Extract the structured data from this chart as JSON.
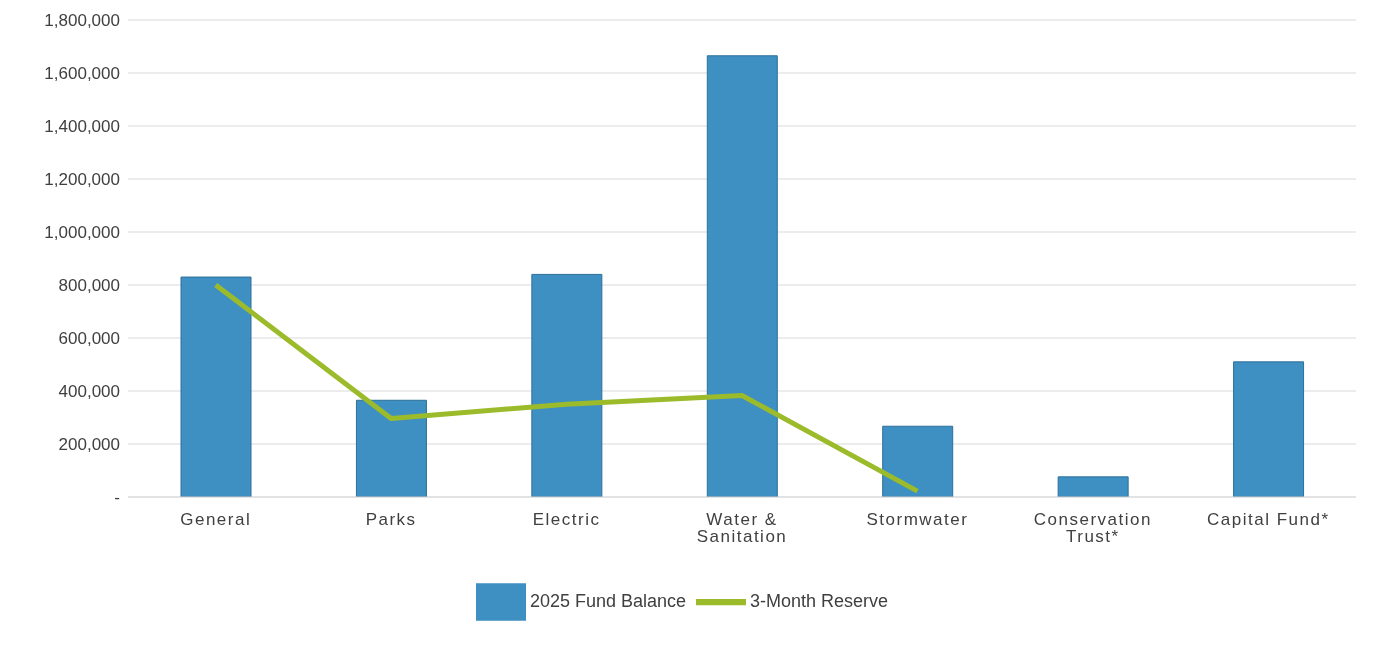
{
  "chart_data": {
    "type": "bar",
    "categories": [
      "General",
      "Parks",
      "Electric",
      "Water & Sanitation",
      "Stormwater",
      "Conservation Trust*",
      "Capital Fund*"
    ],
    "series": [
      {
        "name": "2025 Fund Balance",
        "color": "#3e8fc2",
        "values": [
          830000,
          365000,
          840000,
          1665000,
          267000,
          76000,
          510000
        ]
      },
      {
        "name": "3-Month Reserve",
        "type": "line",
        "color": "#9bbb2a",
        "values": [
          800000,
          296000,
          350000,
          383000,
          22000,
          null,
          null
        ]
      }
    ],
    "ylim": [
      0,
      1800000
    ],
    "yticks": [
      {
        "value": 0,
        "label": "-"
      },
      {
        "value": 200000,
        "label": "200,000"
      },
      {
        "value": 400000,
        "label": "400,000"
      },
      {
        "value": 600000,
        "label": "600,000"
      },
      {
        "value": 800000,
        "label": "800,000"
      },
      {
        "value": 1000000,
        "label": "1,000,000"
      },
      {
        "value": 1200000,
        "label": "1,200,000"
      },
      {
        "value": 1400000,
        "label": "1,400,000"
      },
      {
        "value": 1600000,
        "label": "1,600,000"
      },
      {
        "value": 1800000,
        "label": "1,800,000"
      }
    ],
    "grid": "y",
    "legend": "bottom",
    "marker": "none",
    "line_style": "solid"
  }
}
